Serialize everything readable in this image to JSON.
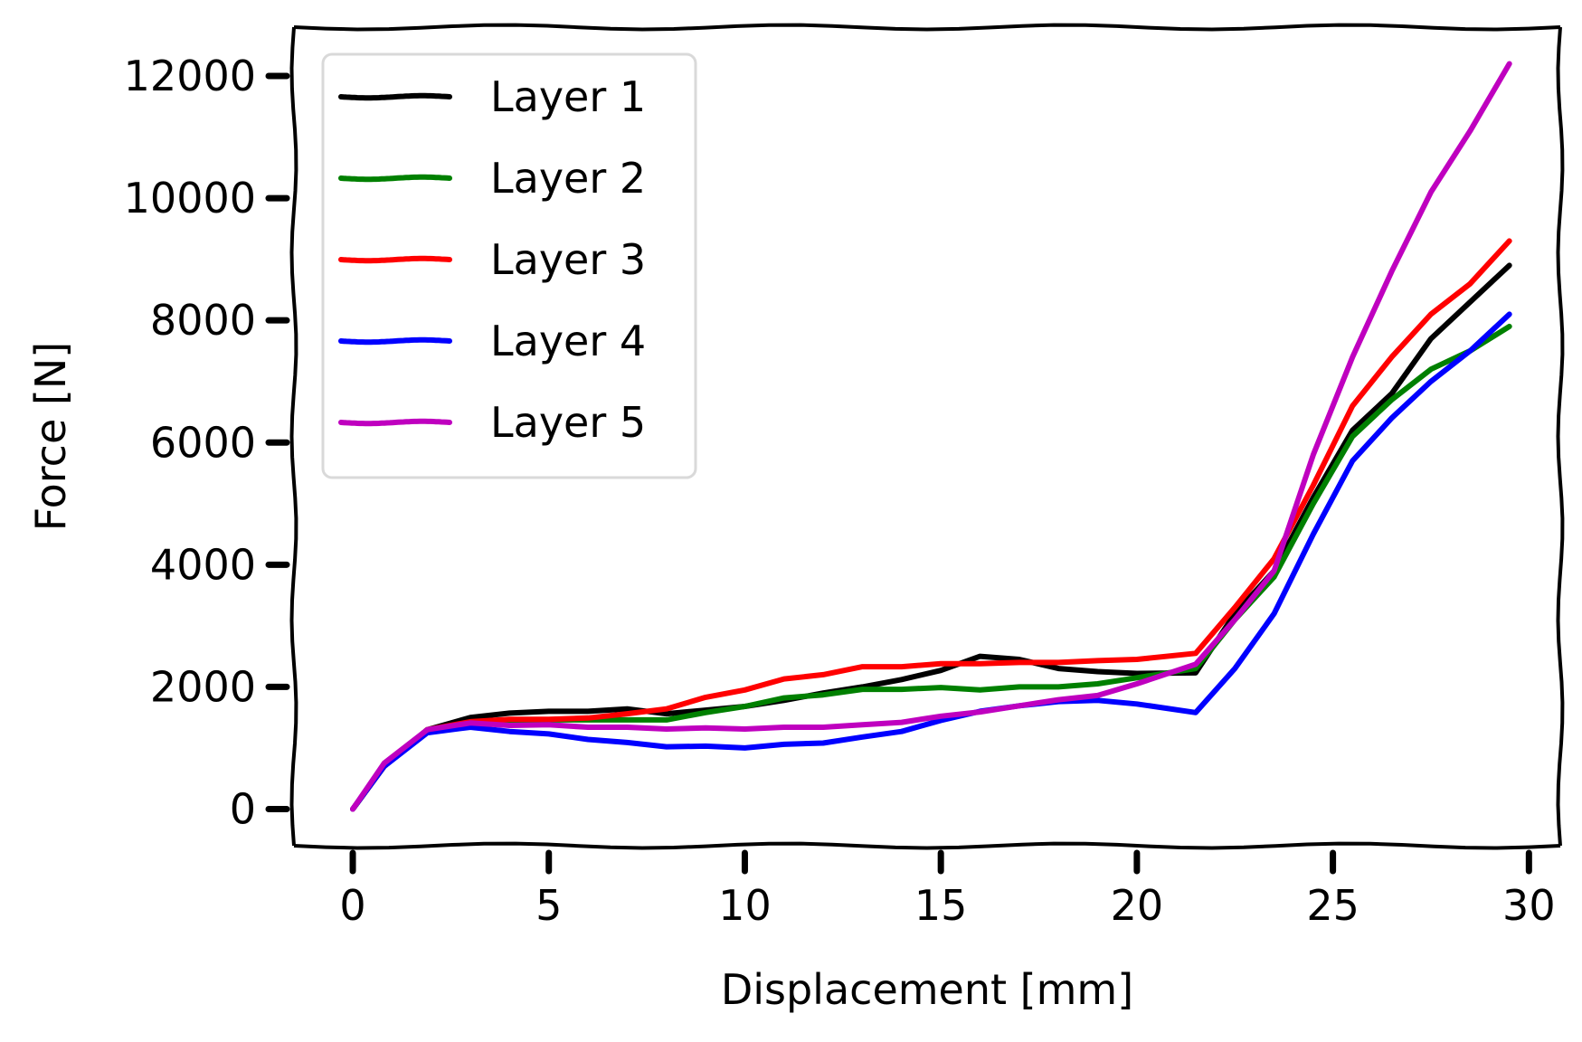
{
  "chart_data": {
    "type": "line",
    "title": "",
    "xlabel": "Displacement [mm]",
    "ylabel": "Force [N]",
    "xlim": [
      -1.5,
      30.8
    ],
    "ylim": [
      -600,
      12800
    ],
    "xticks": [
      0,
      5,
      10,
      15,
      20,
      25,
      30
    ],
    "xtick_labels": [
      "0",
      "5",
      "10",
      "15",
      "20",
      "25",
      "30"
    ],
    "yticks": [
      0,
      2000,
      4000,
      6000,
      8000,
      10000,
      12000
    ],
    "ytick_labels": [
      "0",
      "2000",
      "4000",
      "6000",
      "8000",
      "10000",
      "12000"
    ],
    "grid": false,
    "legend_position": "top-left",
    "series": [
      {
        "name": "Layer 1",
        "color": "#000000",
        "x": [
          0,
          0.8,
          1.9,
          3,
          4,
          5,
          6,
          7,
          8,
          9,
          10,
          11,
          12,
          13,
          14,
          15,
          16,
          17,
          18,
          19,
          20,
          21.5,
          22.5,
          23.5,
          24.5,
          25.5,
          26.5,
          27.5,
          28.5,
          29.5
        ],
        "y": [
          0,
          700,
          1300,
          1500,
          1570,
          1600,
          1600,
          1640,
          1560,
          1620,
          1680,
          1780,
          1900,
          2000,
          2120,
          2270,
          2500,
          2450,
          2300,
          2250,
          2220,
          2230,
          3200,
          3900,
          5100,
          6200,
          6800,
          7700,
          8300,
          8900
        ]
      },
      {
        "name": "Layer 2",
        "color": "#008000",
        "x": [
          0,
          0.8,
          1.9,
          3,
          4,
          5,
          6,
          7,
          8,
          9,
          10,
          11,
          12,
          13,
          14,
          15,
          16,
          17,
          18,
          19,
          20,
          21.5,
          22.5,
          23.5,
          24.5,
          25.5,
          26.5,
          27.5,
          28.5,
          29.5
        ],
        "y": [
          0,
          700,
          1300,
          1420,
          1450,
          1460,
          1460,
          1460,
          1460,
          1580,
          1680,
          1820,
          1870,
          1960,
          1960,
          1990,
          1950,
          2000,
          2000,
          2050,
          2150,
          2300,
          3100,
          3800,
          5000,
          6100,
          6700,
          7200,
          7500,
          7900
        ]
      },
      {
        "name": "Layer 3",
        "color": "#ff0000",
        "x": [
          0,
          0.8,
          1.9,
          3,
          4,
          5,
          6,
          7,
          8,
          9,
          10,
          11,
          12,
          13,
          14,
          15,
          16,
          17,
          18,
          19,
          20,
          21.5,
          22.5,
          23.5,
          24.5,
          25.5,
          26.5,
          27.5,
          28.5,
          29.5
        ],
        "y": [
          0,
          700,
          1300,
          1430,
          1470,
          1470,
          1490,
          1560,
          1640,
          1830,
          1950,
          2130,
          2200,
          2330,
          2330,
          2380,
          2380,
          2400,
          2400,
          2430,
          2450,
          2550,
          3300,
          4100,
          5300,
          6600,
          7400,
          8100,
          8600,
          9300
        ]
      },
      {
        "name": "Layer 4",
        "color": "#0000ff",
        "x": [
          0,
          0.8,
          1.9,
          3,
          4,
          5,
          6,
          7,
          8,
          9,
          10,
          11,
          12,
          13,
          14,
          15,
          16,
          17,
          18,
          19,
          20,
          21.5,
          22.5,
          23.5,
          24.5,
          25.5,
          26.5,
          27.5,
          28.5,
          29.5
        ],
        "y": [
          0,
          700,
          1250,
          1340,
          1270,
          1230,
          1140,
          1090,
          1020,
          1030,
          1000,
          1060,
          1080,
          1180,
          1270,
          1450,
          1600,
          1690,
          1760,
          1780,
          1720,
          1580,
          2300,
          3200,
          4500,
          5700,
          6400,
          7000,
          7500,
          8100
        ]
      },
      {
        "name": "Layer 5",
        "color": "#bf00bf",
        "x": [
          0,
          0.8,
          1.9,
          3,
          4,
          5,
          6,
          7,
          8,
          9,
          10,
          11,
          12,
          13,
          14,
          15,
          16,
          17,
          18,
          19,
          20,
          21.5,
          22.5,
          23.5,
          24.5,
          25.5,
          26.5,
          27.5,
          28.5,
          29.5
        ],
        "y": [
          0,
          750,
          1300,
          1410,
          1370,
          1380,
          1340,
          1340,
          1310,
          1330,
          1310,
          1340,
          1340,
          1380,
          1420,
          1520,
          1590,
          1690,
          1790,
          1860,
          2050,
          2370,
          3100,
          3900,
          5800,
          7400,
          8800,
          10100,
          11100,
          12200
        ]
      }
    ]
  }
}
